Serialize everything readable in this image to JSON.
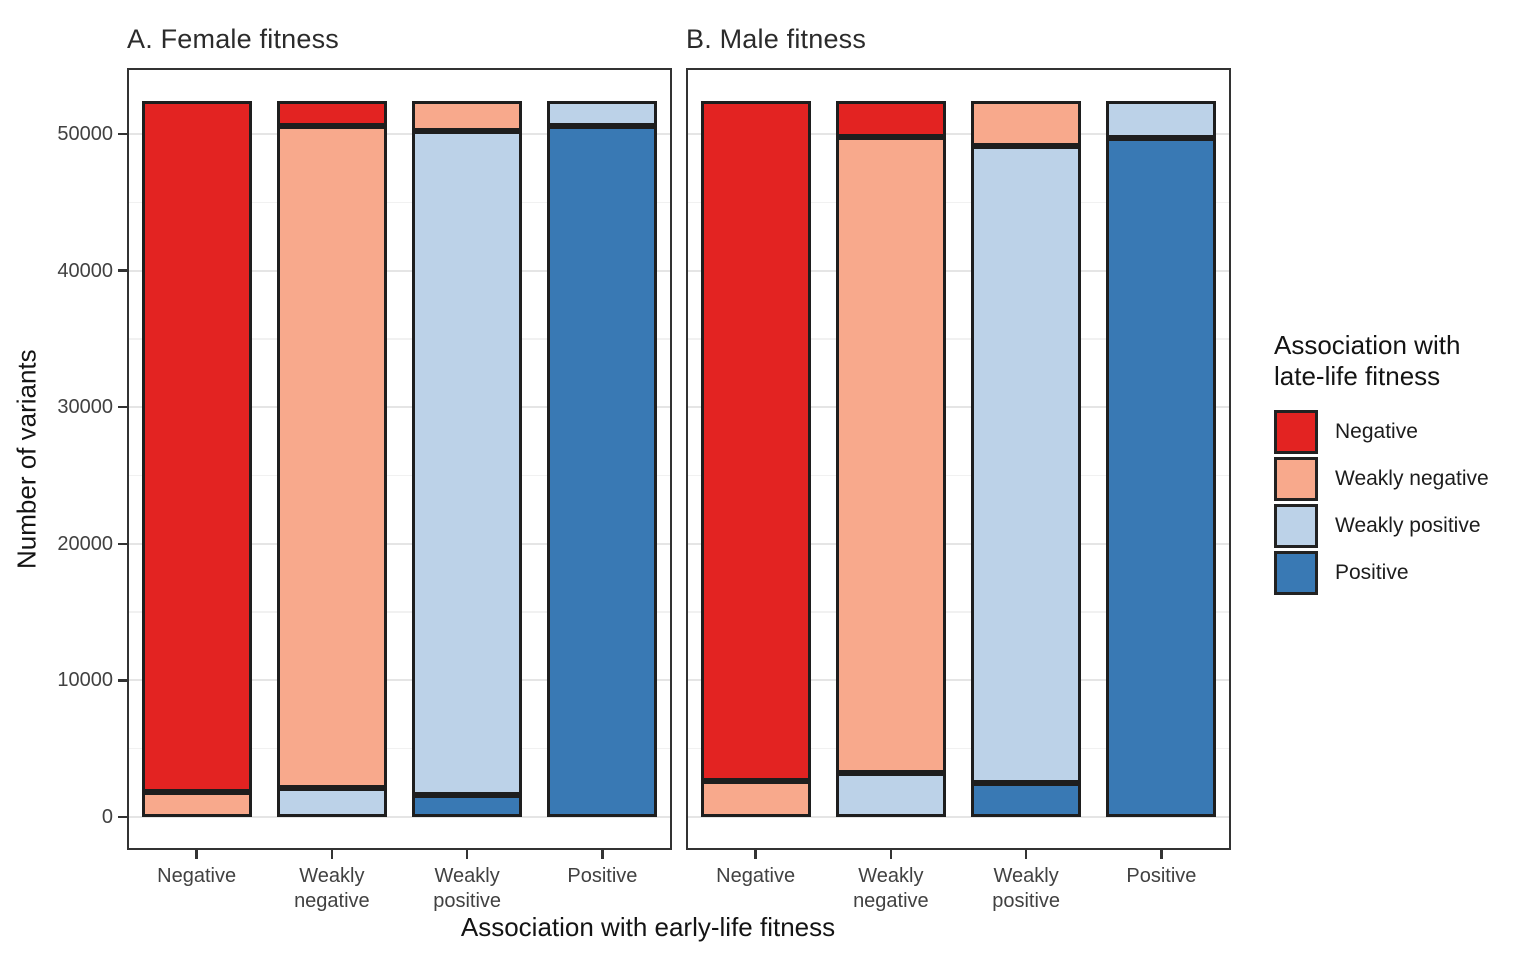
{
  "figure": {
    "ylabel": "Number of variants",
    "xlabel": "Association with early-life fitness"
  },
  "legend": {
    "title": "Association with\nlate-life fitness",
    "items": [
      {
        "label": "Negative",
        "color": "#E32322"
      },
      {
        "label": "Weakly negative",
        "color": "#F8A98C"
      },
      {
        "label": "Weakly positive",
        "color": "#BCD2E8"
      },
      {
        "label": "Positive",
        "color": "#3979B4"
      }
    ]
  },
  "chart_data": [
    {
      "type": "bar",
      "stacked": true,
      "stack_order": "first-series-on-top",
      "title": "A. Female fitness",
      "categories": [
        "Negative",
        "Weakly negative",
        "Weakly positive",
        "Positive"
      ],
      "tick_labels": [
        "Negative",
        "Weakly\nnegative",
        "Weakly\npositive",
        "Positive"
      ],
      "series": [
        {
          "name": "Negative",
          "color": "#E32322",
          "values": [
            50600,
            1850,
            0,
            0
          ]
        },
        {
          "name": "Weakly negative",
          "color": "#F8A98C",
          "values": [
            1800,
            48450,
            2200,
            0
          ]
        },
        {
          "name": "Weakly positive",
          "color": "#BCD2E8",
          "values": [
            0,
            2100,
            48600,
            1800
          ]
        },
        {
          "name": "Positive",
          "color": "#3979B4",
          "values": [
            0,
            0,
            1600,
            50600
          ]
        }
      ],
      "bar_totals": [
        52400,
        52400,
        52400,
        52400
      ],
      "yticks": [
        0,
        10000,
        20000,
        30000,
        40000,
        50000
      ],
      "minor_tick_step": 5000,
      "ylim": [
        0,
        54500
      ],
      "grid": true,
      "legend_position": "right"
    },
    {
      "type": "bar",
      "stacked": true,
      "stack_order": "first-series-on-top",
      "title": "B. Male fitness",
      "categories": [
        "Negative",
        "Weakly negative",
        "Weakly positive",
        "Positive"
      ],
      "tick_labels": [
        "Negative",
        "Weakly\nnegative",
        "Weakly\npositive",
        "Positive"
      ],
      "series": [
        {
          "name": "Negative",
          "color": "#E32322",
          "values": [
            49800,
            2650,
            0,
            0
          ]
        },
        {
          "name": "Weakly negative",
          "color": "#F8A98C",
          "values": [
            2600,
            46550,
            3300,
            0
          ]
        },
        {
          "name": "Weakly positive",
          "color": "#BCD2E8",
          "values": [
            0,
            3200,
            46600,
            2700
          ]
        },
        {
          "name": "Positive",
          "color": "#3979B4",
          "values": [
            0,
            0,
            2500,
            49700
          ]
        }
      ],
      "bar_totals": [
        52400,
        52400,
        52400,
        52400
      ],
      "yticks": [
        0,
        10000,
        20000,
        30000,
        40000,
        50000
      ],
      "minor_tick_step": 5000,
      "ylim": [
        0,
        54500
      ],
      "grid": true,
      "legend_position": "right"
    }
  ]
}
